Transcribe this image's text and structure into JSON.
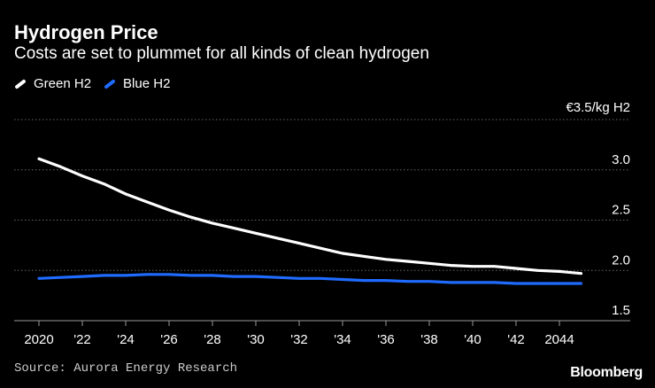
{
  "header": {
    "title": "Hydrogen Price",
    "subtitle": "Costs are set to plummet for all kinds of clean hydrogen"
  },
  "footer": {
    "source": "Source: Aurora Energy Research",
    "brand": "Bloomberg"
  },
  "colors": {
    "background": "#000000",
    "green_h2": "#ffffff",
    "blue_h2": "#1f6bff",
    "grid": "#666666",
    "text": "#ffffff"
  },
  "chart_data": {
    "type": "line",
    "title": "Hydrogen Price",
    "subtitle": "Costs are set to plummet for all kinds of clean hydrogen",
    "xlabel": "",
    "ylabel": "€3.5/kg H2",
    "ylim": [
      1.5,
      3.5
    ],
    "xlim": [
      2019.4,
      2046
    ],
    "y_ticks": [
      {
        "value": 3.5,
        "label": "€3.5/kg H2"
      },
      {
        "value": 3.0,
        "label": "3.0"
      },
      {
        "value": 2.5,
        "label": "2.5"
      },
      {
        "value": 2.0,
        "label": "2.0"
      },
      {
        "value": 1.5,
        "label": "1.5"
      }
    ],
    "x_ticks": [
      {
        "value": 2020,
        "label": "2020"
      },
      {
        "value": 2022,
        "label": "'22"
      },
      {
        "value": 2024,
        "label": "'24"
      },
      {
        "value": 2026,
        "label": "'26"
      },
      {
        "value": 2028,
        "label": "'28"
      },
      {
        "value": 2030,
        "label": "'30"
      },
      {
        "value": 2032,
        "label": "'32"
      },
      {
        "value": 2034,
        "label": "'34"
      },
      {
        "value": 2036,
        "label": "'36"
      },
      {
        "value": 2038,
        "label": "'38"
      },
      {
        "value": 2040,
        "label": "'40"
      },
      {
        "value": 2042,
        "label": "'42"
      },
      {
        "value": 2044,
        "label": "2044"
      }
    ],
    "grid": true,
    "legend": "top-left",
    "x": [
      2020,
      2021,
      2022,
      2023,
      2024,
      2025,
      2026,
      2027,
      2028,
      2029,
      2030,
      2031,
      2032,
      2033,
      2034,
      2035,
      2036,
      2037,
      2038,
      2039,
      2040,
      2041,
      2042,
      2043,
      2044,
      2045
    ],
    "series": [
      {
        "name": "Green H2",
        "color": "#ffffff",
        "values": [
          3.11,
          3.03,
          2.94,
          2.86,
          2.76,
          2.68,
          2.6,
          2.53,
          2.47,
          2.42,
          2.37,
          2.32,
          2.27,
          2.22,
          2.17,
          2.14,
          2.11,
          2.09,
          2.07,
          2.05,
          2.04,
          2.04,
          2.02,
          2.0,
          1.99,
          1.97
        ]
      },
      {
        "name": "Blue H2",
        "color": "#1f6bff",
        "values": [
          1.92,
          1.93,
          1.94,
          1.95,
          1.95,
          1.96,
          1.96,
          1.95,
          1.95,
          1.94,
          1.94,
          1.93,
          1.92,
          1.92,
          1.91,
          1.9,
          1.9,
          1.89,
          1.89,
          1.88,
          1.88,
          1.88,
          1.87,
          1.87,
          1.87,
          1.87
        ]
      }
    ]
  }
}
